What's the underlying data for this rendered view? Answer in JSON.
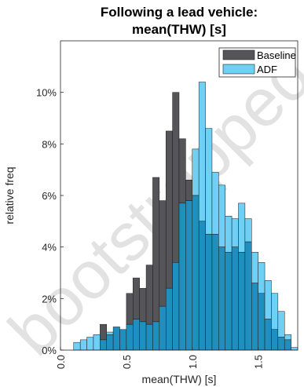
{
  "chart_data": {
    "type": "bar",
    "title_lines": [
      "Following a lead vehicle:",
      "mean(THW) [s]"
    ],
    "xlabel": "mean(THW) [s]",
    "ylabel": "relative freq",
    "xlim": [
      0,
      1.8
    ],
    "ylim": [
      0,
      0.12
    ],
    "x_ticks": [
      0.0,
      0.5,
      1.0,
      1.5
    ],
    "x_tick_labels": [
      "0.0",
      "0.5",
      "1.0",
      "1.5"
    ],
    "y_ticks": [
      0,
      0.02,
      0.04,
      0.06,
      0.08,
      0.1
    ],
    "y_tick_labels": [
      "0%",
      "2%",
      "4%",
      "6%",
      "8%",
      "10%"
    ],
    "bin_width": 0.05,
    "bin_starts": [
      0.1,
      0.15,
      0.2,
      0.25,
      0.3,
      0.35,
      0.4,
      0.45,
      0.5,
      0.55,
      0.6,
      0.65,
      0.7,
      0.75,
      0.8,
      0.85,
      0.9,
      0.95,
      1.0,
      1.05,
      1.1,
      1.15,
      1.2,
      1.25,
      1.3,
      1.35,
      1.4,
      1.45,
      1.5,
      1.55,
      1.6,
      1.65,
      1.7,
      1.75
    ],
    "series": [
      {
        "name": "Baseline",
        "color": "#555559",
        "values": [
          0,
          0,
          0,
          0,
          0.01,
          0.006,
          0.009,
          0.008,
          0.022,
          0.028,
          0.024,
          0.033,
          0.067,
          0.058,
          0.085,
          0.1,
          0.082,
          0.066,
          0.06,
          0.05,
          0.045,
          0.045,
          0.04,
          0.038,
          0.04,
          0.038,
          0.042,
          0.026,
          0.022,
          0.012,
          0.008,
          0.005,
          0.004,
          0
        ]
      },
      {
        "name": "ADF",
        "color": "#6fd0f6",
        "values": [
          0.003,
          0.004,
          0.005,
          0.006,
          0.004,
          0.007,
          0.009,
          0.008,
          0.01,
          0.012,
          0.011,
          0.01,
          0.011,
          0.017,
          0.024,
          0.034,
          0.057,
          0.058,
          0.078,
          0.104,
          0.086,
          0.069,
          0.064,
          0.052,
          0.051,
          0.057,
          0.051,
          0.038,
          0.034,
          0.027,
          0.022,
          0.015,
          0.006,
          0.001
        ]
      }
    ],
    "overlap_color": "#1e8fbf",
    "legend_position": "top-right",
    "grid": false,
    "watermark": "bootstrapped"
  }
}
